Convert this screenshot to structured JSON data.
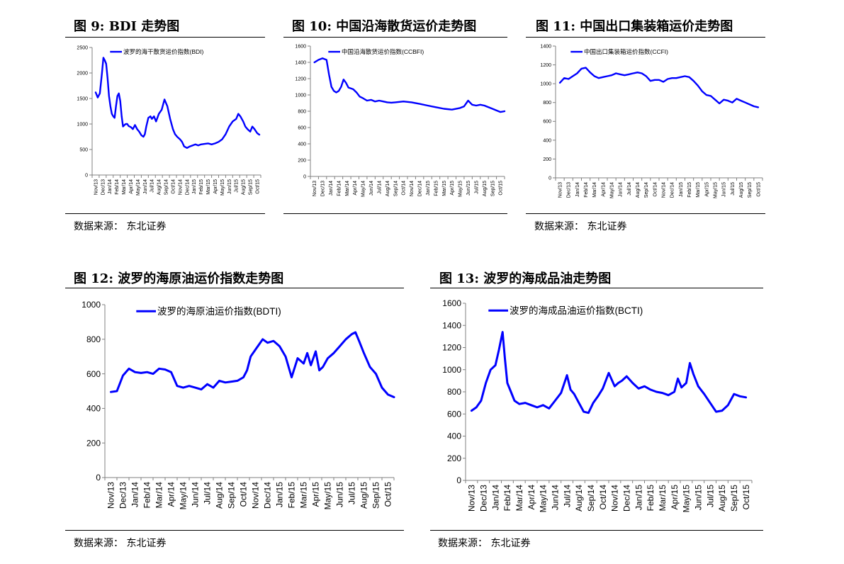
{
  "source_note": "数据来源：  东北证券",
  "line_color": "#0000FF",
  "chart_data": [
    {
      "id": "fig9",
      "type": "line",
      "title": "图 9:  BDI  走势图",
      "show_source": false,
      "ylim": [
        0,
        2500
      ],
      "yticks": [
        0,
        500,
        1000,
        1500,
        2000,
        2500
      ],
      "xticks": [
        "Nov/13",
        "Dec/13",
        "Jan/14",
        "Feb/14",
        "Mar/14",
        "Apr/14",
        "May/14",
        "Jun/14",
        "Jul/14",
        "Aug/14",
        "Sep/14",
        "Oct/14",
        "Nov/14",
        "Dec/14",
        "Jan/15",
        "Feb/15",
        "Mar/15",
        "Apr/15",
        "May/15",
        "Jun/15",
        "Jul/15",
        "Aug/15",
        "Sep/15",
        "Oct/15"
      ],
      "series": [
        {
          "name": "波罗的海干散货运价指数(BDI)",
          "x": [
            0,
            0.3,
            0.6,
            0.9,
            1.1,
            1.3,
            1.5,
            1.7,
            1.9,
            2.1,
            2.3,
            2.5,
            2.7,
            2.9,
            3.1,
            3.3,
            3.5,
            3.7,
            3.9,
            4.1,
            4.3,
            4.5,
            4.7,
            5,
            5.3,
            5.6,
            5.9,
            6.2,
            6.5,
            6.8,
            7,
            7.2,
            7.5,
            7.8,
            8,
            8.3,
            8.6,
            9,
            9.4,
            9.8,
            10.2,
            10.6,
            11,
            11.3,
            11.6,
            12,
            12.3,
            12.6,
            13,
            13.4,
            13.8,
            14.2,
            14.6,
            15,
            15.5,
            16,
            16.5,
            17,
            17.5,
            18,
            18.5,
            19,
            19.5,
            20,
            20.3,
            20.6,
            21,
            21.3,
            21.6,
            22,
            22.3,
            22.6,
            23,
            23.3
          ],
          "values": [
            1620,
            1520,
            1600,
            2000,
            2300,
            2250,
            2180,
            1900,
            1550,
            1350,
            1200,
            1150,
            1120,
            1350,
            1550,
            1600,
            1450,
            1150,
            950,
            980,
            1000,
            1000,
            960,
            940,
            900,
            980,
            900,
            850,
            780,
            750,
            800,
            950,
            1120,
            1150,
            1100,
            1150,
            1050,
            1200,
            1280,
            1480,
            1350,
            1100,
            900,
            800,
            750,
            700,
            650,
            560,
            530,
            560,
            580,
            600,
            580,
            600,
            610,
            620,
            600,
            620,
            650,
            700,
            800,
            950,
            1050,
            1100,
            1200,
            1150,
            1050,
            950,
            900,
            850,
            950,
            900,
            820,
            790
          ]
        }
      ]
    },
    {
      "id": "fig10",
      "type": "line",
      "title": "图 10: 中国沿海散货运价走势图",
      "show_source": false,
      "ylim": [
        0,
        1600
      ],
      "yticks": [
        0,
        200,
        400,
        600,
        800,
        1000,
        1200,
        1400,
        1600
      ],
      "xticks": [
        "Nov/13",
        "Dec/13",
        "Jan/14",
        "Feb/14",
        "Mar/14",
        "Apr/14",
        "May/14",
        "Jun/14",
        "Jul/14",
        "Aug/14",
        "Sep/14",
        "Oct/14",
        "Nov/14",
        "Dec/14",
        "Jan/15",
        "Feb/15",
        "Mar/15",
        "Apr/15",
        "May/15",
        "Jun/15",
        "Jul/15",
        "Aug/15",
        "Sep/15",
        "Oct/15"
      ],
      "series": [
        {
          "name": "中国沿海散货运价指数(CCBFI)",
          "x": [
            0,
            0.5,
            1,
            1.5,
            1.8,
            2.1,
            2.4,
            2.7,
            3,
            3.3,
            3.6,
            3.9,
            4.2,
            4.5,
            4.8,
            5.2,
            5.6,
            6,
            6.5,
            7,
            7.5,
            8,
            8.5,
            9,
            9.5,
            10,
            11,
            12,
            13,
            14,
            15,
            16,
            17,
            18,
            18.5,
            19,
            19.5,
            20,
            20.5,
            21,
            21.5,
            22,
            22.5,
            23,
            23.5
          ],
          "values": [
            1400,
            1430,
            1450,
            1430,
            1250,
            1100,
            1050,
            1030,
            1050,
            1100,
            1190,
            1150,
            1090,
            1080,
            1070,
            1030,
            980,
            960,
            930,
            940,
            920,
            930,
            920,
            910,
            905,
            910,
            920,
            910,
            890,
            870,
            850,
            830,
            820,
            840,
            860,
            930,
            880,
            870,
            880,
            870,
            850,
            830,
            810,
            790,
            800
          ]
        }
      ]
    },
    {
      "id": "fig11",
      "type": "line",
      "title": "图  11:  中国出口集装箱运价走势图",
      "show_source": true,
      "ylim": [
        0,
        1400
      ],
      "yticks": [
        0,
        200,
        400,
        600,
        800,
        1000,
        1200,
        1400
      ],
      "xticks": [
        "Nov/13",
        "Dec/13",
        "Jan/14",
        "Feb/14",
        "Mar/14",
        "Apr/14",
        "May/14",
        "Jun/14",
        "Jul/14",
        "Aug/14",
        "Sep/14",
        "Oct/14",
        "Nov/14",
        "Dec/14",
        "Jan/15",
        "Feb/15",
        "Mar/15",
        "Apr/15",
        "May/15",
        "Jun/15",
        "Jul/15",
        "Aug/15",
        "Sep/15",
        "Oct/15"
      ],
      "series": [
        {
          "name": "中国出口集装箱运价指数(CCFI)",
          "x": [
            0,
            0.5,
            1,
            1.5,
            2,
            2.5,
            3,
            3.5,
            4,
            4.5,
            5,
            5.5,
            6,
            6.5,
            7,
            7.5,
            8,
            8.5,
            9,
            9.5,
            10,
            10.5,
            11,
            11.5,
            12,
            12.5,
            13,
            13.5,
            14,
            14.5,
            15,
            15.5,
            16,
            16.5,
            17,
            17.5,
            18,
            18.5,
            19,
            19.5,
            20,
            20.5,
            21,
            21.5,
            22,
            22.5,
            23
          ],
          "values": [
            1010,
            1060,
            1050,
            1080,
            1110,
            1160,
            1170,
            1120,
            1080,
            1060,
            1070,
            1080,
            1090,
            1110,
            1100,
            1090,
            1100,
            1110,
            1120,
            1110,
            1080,
            1030,
            1040,
            1040,
            1020,
            1050,
            1060,
            1060,
            1070,
            1080,
            1070,
            1030,
            980,
            920,
            880,
            870,
            830,
            790,
            830,
            820,
            800,
            840,
            820,
            800,
            780,
            760,
            750
          ]
        }
      ]
    },
    {
      "id": "fig12",
      "type": "line",
      "title": "图  12:   波罗的海原油运价指数走势图",
      "show_source": true,
      "ylim": [
        0,
        1000
      ],
      "yticks": [
        0,
        200,
        400,
        600,
        800,
        1000
      ],
      "xticks": [
        "Nov/13",
        "Dec/13",
        "Jan/14",
        "Feb/14",
        "Mar/14",
        "Apr/14",
        "May/14",
        "Jun/14",
        "Jul/14",
        "Aug/14",
        "Sep/14",
        "Oct/14",
        "Nov/14",
        "Dec/14",
        "Jan/15",
        "Feb/15",
        "Mar/15",
        "Apr/15",
        "May/15",
        "Jun/15",
        "Jul/15",
        "Aug/15",
        "Sep/15",
        "Oct/15"
      ],
      "series": [
        {
          "name": "波罗的海原油运价指数(BDTI)",
          "x": [
            0,
            0.5,
            1,
            1.5,
            2,
            2.5,
            3,
            3.5,
            4,
            4.5,
            5,
            5.5,
            6,
            6.5,
            7,
            7.5,
            8,
            8.5,
            9,
            9.5,
            10,
            10.5,
            11,
            11.3,
            11.6,
            12,
            12.3,
            12.6,
            13,
            13.5,
            14,
            14.5,
            15,
            15.5,
            16,
            16.3,
            16.6,
            17,
            17.3,
            17.6,
            18,
            18.5,
            19,
            19.5,
            20,
            20.3,
            20.6,
            21,
            21.5,
            22,
            22.5,
            23,
            23.5
          ],
          "values": [
            495,
            500,
            590,
            630,
            610,
            605,
            610,
            600,
            630,
            625,
            610,
            530,
            520,
            530,
            520,
            510,
            540,
            520,
            560,
            550,
            555,
            560,
            580,
            620,
            700,
            740,
            770,
            800,
            780,
            790,
            760,
            700,
            580,
            690,
            660,
            720,
            650,
            730,
            620,
            640,
            690,
            720,
            760,
            800,
            830,
            840,
            790,
            720,
            640,
            600,
            520,
            480,
            465
          ]
        }
      ]
    },
    {
      "id": "fig13",
      "type": "line",
      "title": "图  13:   波罗的海成品油走势图",
      "show_source": true,
      "ylim": [
        0,
        1600
      ],
      "yticks": [
        0,
        200,
        400,
        600,
        800,
        1000,
        1200,
        1400,
        1600
      ],
      "xticks": [
        "Nov/13",
        "Dec/13",
        "Jan/14",
        "Feb/14",
        "Mar/14",
        "Apr/14",
        "May/14",
        "Jun/14",
        "Jul/14",
        "Aug/14",
        "Sep/14",
        "Oct/14",
        "Nov/14",
        "Dec/14",
        "Jan/15",
        "Feb/15",
        "Mar/15",
        "Apr/15",
        "May/15",
        "Jun/15",
        "Jul/15",
        "Aug/15",
        "Sep/15",
        "Oct/15"
      ],
      "series": [
        {
          "name": "波罗的海成品油运价指数(BCTI)",
          "x": [
            0,
            0.4,
            0.8,
            1.2,
            1.6,
            2,
            2.3,
            2.6,
            2.8,
            3,
            3.3,
            3.6,
            4,
            4.5,
            5,
            5.5,
            6,
            6.5,
            7,
            7.5,
            8,
            8.3,
            8.6,
            9,
            9.4,
            9.8,
            10.2,
            10.6,
            11,
            11.5,
            12,
            12.3,
            12.6,
            13,
            13.5,
            14,
            14.5,
            15,
            15.5,
            16,
            16.5,
            17,
            17.3,
            17.6,
            18,
            18.3,
            18.6,
            19,
            19.5,
            20,
            20.5,
            21,
            21.5,
            22,
            22.5,
            23
          ],
          "values": [
            630,
            660,
            720,
            880,
            1000,
            1040,
            1180,
            1340,
            1100,
            880,
            800,
            720,
            690,
            700,
            680,
            660,
            680,
            650,
            720,
            790,
            950,
            820,
            780,
            700,
            620,
            610,
            700,
            760,
            830,
            970,
            850,
            880,
            900,
            940,
            880,
            830,
            850,
            820,
            800,
            790,
            770,
            800,
            920,
            840,
            880,
            1060,
            960,
            850,
            780,
            700,
            620,
            630,
            680,
            780,
            760,
            750
          ]
        }
      ]
    }
  ]
}
